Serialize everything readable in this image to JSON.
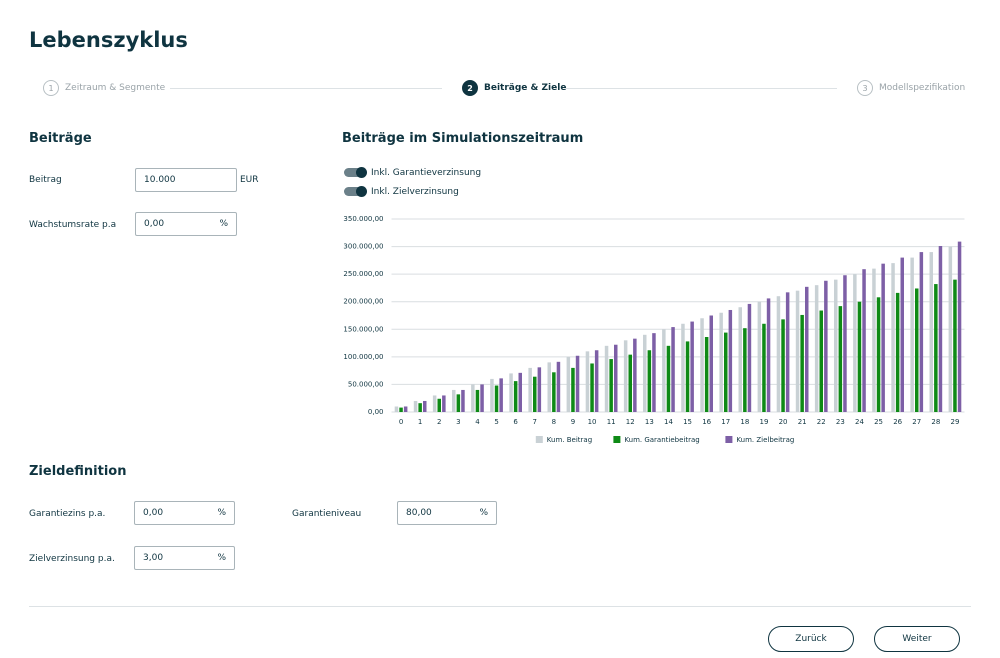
{
  "header": {
    "title": "Lebenszyklus"
  },
  "steps": [
    {
      "number": "1",
      "label": "Zeitraum & Segmente"
    },
    {
      "number": "2",
      "label": "Beiträge & Ziele"
    },
    {
      "number": "3",
      "label": "Modellspezifikation"
    }
  ],
  "contributions": {
    "heading": "Beiträge",
    "fields": [
      {
        "label": "Beitrag",
        "value": "10.000",
        "unit": "EUR"
      },
      {
        "label": "Wachstumsrate p.a",
        "value": "0,00",
        "unit": "%"
      }
    ]
  },
  "simulation": {
    "heading": "Beiträge im Simulationszeitraum",
    "toggles": [
      "Inkl. Garantieverzinsung",
      "Inkl. Zielverzinsung"
    ]
  },
  "chart_data": {
    "type": "bar",
    "categories": [
      "0",
      "1",
      "2",
      "3",
      "4",
      "5",
      "6",
      "7",
      "8",
      "9",
      "10",
      "11",
      "12",
      "13",
      "14",
      "15",
      "16",
      "17",
      "18",
      "19",
      "20",
      "21",
      "22",
      "23",
      "24",
      "25",
      "26",
      "27",
      "28",
      "29"
    ],
    "series": [
      {
        "name": "Kum. Beitrag",
        "color": "#c9d1d5",
        "values": [
          10000,
          20000,
          30000,
          40000,
          50000,
          60000,
          70000,
          80000,
          90000,
          100000,
          110000,
          120000,
          130000,
          140000,
          150000,
          160000,
          170000,
          180000,
          190000,
          200000,
          210000,
          220000,
          230000,
          240000,
          250000,
          260000,
          270000,
          280000,
          290000,
          300000
        ]
      },
      {
        "name": "Kum. Garantiebeitrag",
        "color": "#0e8a16",
        "values": [
          8000,
          16000,
          24000,
          32000,
          40000,
          48000,
          56000,
          64000,
          72000,
          80000,
          88000,
          96000,
          104000,
          112000,
          120000,
          128000,
          136000,
          144000,
          152000,
          160000,
          168000,
          176000,
          184000,
          192000,
          200000,
          208000,
          216000,
          224000,
          232000,
          240000
        ]
      },
      {
        "name": "Kum. Zielbeitrag",
        "color": "#7d5fa6",
        "values": [
          10000,
          20000,
          30000,
          40000,
          50000,
          61000,
          71000,
          81000,
          91000,
          102000,
          112000,
          122000,
          133000,
          143000,
          154000,
          164000,
          175000,
          185000,
          196000,
          206000,
          217000,
          227000,
          238000,
          248000,
          259000,
          269000,
          280000,
          290000,
          301000,
          309000
        ]
      }
    ],
    "ylim": [
      0,
      350000
    ],
    "yticks": [
      {
        "value": 0,
        "label": "0,00"
      },
      {
        "value": 50000,
        "label": "50.000,00"
      },
      {
        "value": 100000,
        "label": "100.000,00"
      },
      {
        "value": 150000,
        "label": "150.000,00"
      },
      {
        "value": 200000,
        "label": "200.000,00"
      },
      {
        "value": 250000,
        "label": "250.000,00"
      },
      {
        "value": 300000,
        "label": "300.000,00"
      },
      {
        "value": 350000,
        "label": "350.000,00"
      }
    ],
    "grid": true,
    "legend": "bottom"
  },
  "targets": {
    "heading": "Zieldefinition",
    "fields": [
      {
        "label": "Garantiezins p.a.",
        "value": "0,00",
        "unit": "%"
      },
      {
        "label": "Garantieniveau",
        "value": "80,00",
        "unit": "%"
      },
      {
        "label": "Zielverzinsung p.a.",
        "value": "3,00",
        "unit": "%"
      }
    ]
  },
  "buttons": [
    "Zurück",
    "Weiter"
  ]
}
